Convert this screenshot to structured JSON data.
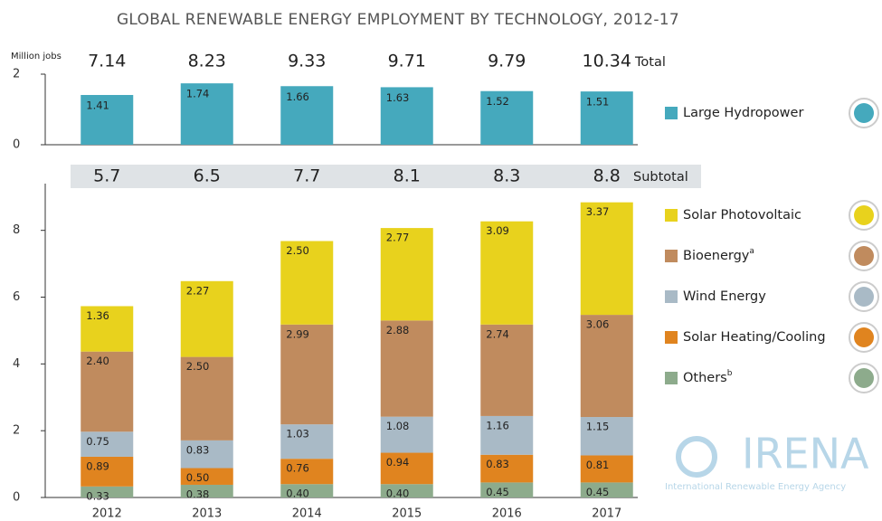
{
  "chart_data": [
    {
      "type": "bar",
      "title": "GLOBAL RENEWABLE ENERGY EMPLOYMENT BY TECHNOLOGY, 2012-17",
      "y_label": "Million jobs",
      "ylim": [
        0,
        2
      ],
      "yticks": [
        0,
        2
      ],
      "totals": [
        7.14,
        8.23,
        9.33,
        9.71,
        9.79,
        10.34
      ],
      "totals_label": "Total",
      "series": [
        {
          "name": "Large Hydropower",
          "color": "#45a9bd",
          "values": [
            1.41,
            1.74,
            1.66,
            1.63,
            1.52,
            1.51
          ]
        }
      ]
    },
    {
      "type": "stacked_bar",
      "categories": [
        "2012",
        "2013",
        "2014",
        "2015",
        "2016",
        "2017"
      ],
      "ylim": [
        0,
        9.4
      ],
      "yticks": [
        0,
        2,
        4,
        6,
        8
      ],
      "subtotals": [
        5.7,
        6.5,
        7.7,
        8.1,
        8.3,
        8.8
      ],
      "subtotals_label": "Subtotal",
      "series": [
        {
          "name": "Others",
          "note": "b",
          "color": "#8dab8c",
          "values": [
            0.33,
            0.38,
            0.4,
            0.4,
            0.45,
            0.45
          ],
          "value_labels": [
            "0.33",
            "0.38",
            "0.40",
            "0.40",
            "0.45",
            "0.45"
          ]
        },
        {
          "name": "Solar Heating/Cooling",
          "color": "#e0841f",
          "values": [
            0.89,
            0.5,
            0.76,
            0.94,
            0.83,
            0.81
          ],
          "value_labels": [
            "0.89",
            "0.50",
            "0.76",
            "0.94",
            "0.83",
            "0.81"
          ]
        },
        {
          "name": "Wind Energy",
          "color": "#a9bac6",
          "values": [
            0.75,
            0.83,
            1.03,
            1.08,
            1.16,
            1.15
          ]
        },
        {
          "name": "Bioenergy",
          "note": "a",
          "color": "#c08b5e",
          "values": [
            2.4,
            2.5,
            2.99,
            2.88,
            2.74,
            3.06
          ],
          "value_labels": [
            "2.40",
            "2.50",
            "2.99",
            "2.88",
            "2.74",
            "3.06"
          ]
        },
        {
          "name": "Solar Photovoltaic",
          "color": "#e8d21d",
          "values": [
            1.36,
            2.27,
            2.5,
            2.77,
            3.09,
            3.37
          ],
          "value_labels": [
            "1.36",
            "2.27",
            "2.50",
            "2.77",
            "3.09",
            "3.37"
          ]
        }
      ]
    }
  ],
  "logo": {
    "text": "IRENA",
    "tagline": "International Renewable Energy Agency"
  }
}
